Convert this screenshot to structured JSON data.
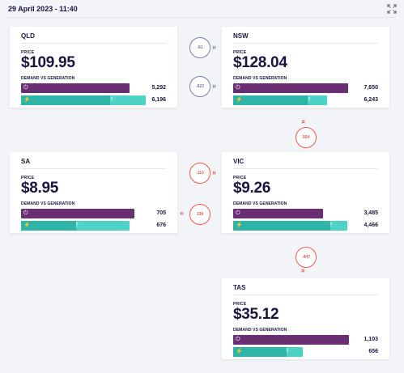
{
  "header": {
    "timestamp": "29 April 2023 - 11:40",
    "expand_icon": "expand-icon"
  },
  "labels": {
    "price": "PRICE",
    "demand_vs_generation": "DEMAND VS GENERATION"
  },
  "colors": {
    "demand": "#6a2e72",
    "generation": "#4fd2c6",
    "renewable": "#2fb4a8",
    "flow_export": "#ee5b4f",
    "flow_neutral": "#7580a6"
  },
  "regions": {
    "qld": {
      "name": "QLD",
      "price": "$109.95",
      "demand": "5,292",
      "generation": "6,196"
    },
    "nsw": {
      "name": "NSW",
      "price": "$128.04",
      "demand": "7,650",
      "generation": "6,243"
    },
    "sa": {
      "name": "SA",
      "price": "$8.95",
      "demand": "705",
      "generation": "676"
    },
    "vic": {
      "name": "VIC",
      "price": "$9.26",
      "demand": "3,485",
      "generation": "4,466"
    },
    "tas": {
      "name": "TAS",
      "price": "$35.12",
      "demand": "1,103",
      "generation": "656"
    }
  },
  "flows": {
    "qld_nsw_1": "-81",
    "qld_nsw_2": "-822",
    "nsw_vic": "504",
    "sa_vic_1": "-110",
    "sa_vic_2": "139",
    "vic_tas": "-447"
  }
}
